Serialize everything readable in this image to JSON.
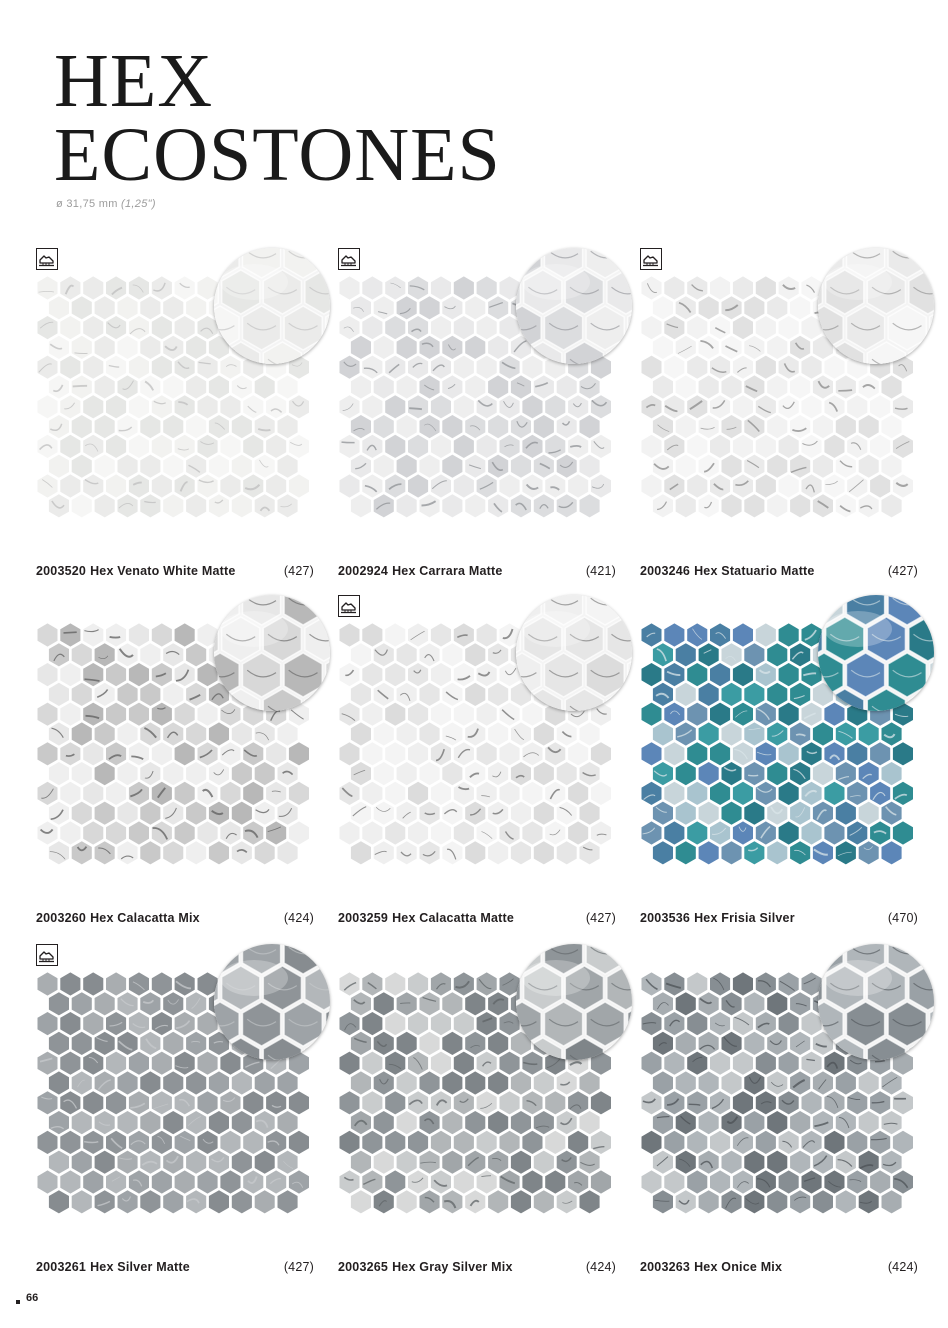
{
  "page": {
    "title_line1": "HEX",
    "title_line2": "ECOSTONES",
    "size_main": "ø 31,75 mm",
    "size_paren": "(1,25\")",
    "page_number": "66"
  },
  "products": [
    {
      "code": "2003520",
      "name": "Hex Venato White Matte",
      "count": "(427)",
      "slip_icon": true,
      "tone": "white",
      "palette": [
        "#f2f2f0",
        "#ebebea",
        "#e6e7e5",
        "#f6f6f5"
      ],
      "vein": "#bdbdbd"
    },
    {
      "code": "2002924",
      "name": "Hex Carrara Matte",
      "count": "(421)",
      "slip_icon": true,
      "tone": "carrara",
      "palette": [
        "#e9e9ea",
        "#dcdddf",
        "#eeeeee",
        "#d2d3d6"
      ],
      "vein": "#8e9094"
    },
    {
      "code": "2003246",
      "name": "Hex Statuario Matte",
      "count": "(427)",
      "slip_icon": true,
      "tone": "statuario",
      "palette": [
        "#f2f2f2",
        "#eaeaea",
        "#f6f6f6",
        "#e1e1e1"
      ],
      "vein": "#8a8a8a"
    },
    {
      "code": "2003260",
      "name": "Hex Calacatta Mix",
      "count": "(424)",
      "slip_icon": false,
      "tone": "calacatta-mix",
      "palette": [
        "#e7e7e7",
        "#d8d8d8",
        "#c9c9c9",
        "#efefef",
        "#b8b8b8"
      ],
      "vein": "#5d5d5d"
    },
    {
      "code": "2003259",
      "name": "Hex Calacatta Matte",
      "count": "(427)",
      "slip_icon": true,
      "tone": "calacatta",
      "palette": [
        "#efefef",
        "#e6e6e6",
        "#f4f4f4",
        "#dcdcdc"
      ],
      "vein": "#6e6e6e"
    },
    {
      "code": "2003536",
      "name": "Hex Frisia Silver",
      "count": "(470)",
      "slip_icon": false,
      "tone": "frisia",
      "palette": [
        "#2f8c92",
        "#4a7fa3",
        "#5c86b8",
        "#a9c4cf",
        "#3b9ca3",
        "#c8d5da",
        "#6d93b1",
        "#2a7a88"
      ],
      "vein": "#d9e4e8"
    },
    {
      "code": "2003261",
      "name": "Hex Silver Matte",
      "count": "(427)",
      "slip_icon": true,
      "tone": "silver",
      "palette": [
        "#9ea3a7",
        "#8f9498",
        "#a9adb0",
        "#b3b7ba",
        "#878c90"
      ],
      "vein": "#c7cacc"
    },
    {
      "code": "2003265",
      "name": "Hex Gray Silver Mix",
      "count": "(424)",
      "slip_icon": false,
      "tone": "gray-silver",
      "palette": [
        "#8f9599",
        "#a1a6a9",
        "#b2b6b8",
        "#c9cccd",
        "#7f8589",
        "#d8d9d9"
      ],
      "vein": "#5f6467"
    },
    {
      "code": "2003263",
      "name": "Hex Onice Mix",
      "count": "(424)",
      "slip_icon": false,
      "tone": "onice",
      "palette": [
        "#9aa1a6",
        "#b0b6ba",
        "#878e93",
        "#c4c8ca",
        "#a7adb1",
        "#6f767b"
      ],
      "vein": "#4c5256"
    }
  ]
}
